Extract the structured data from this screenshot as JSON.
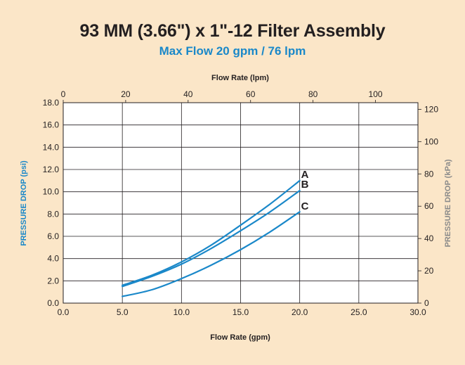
{
  "header": {
    "title": "93 MM (3.66\") x 1\"-12 Filter Assembly",
    "subtitle": "Max Flow 20 gpm / 76 lpm"
  },
  "colors": {
    "background": "#fbe6c8",
    "title": "#231f20",
    "subtitle": "#1a88c9",
    "curve": "#1a88c9",
    "left_axis_label": "#1a88c9",
    "right_axis_label": "#8a8a8a"
  },
  "chart_data": {
    "type": "line",
    "title": "93 MM (3.66\") x 1\"-12 Filter Assembly",
    "subtitle": "Max Flow 20 gpm / 76 lpm",
    "xlabel": "Flow Rate (gpm)",
    "xlim": [
      0,
      30
    ],
    "xticks": [
      "0.0",
      "5.0",
      "10.0",
      "15.0",
      "20.0",
      "25.0",
      "30.0"
    ],
    "x2label": "Flow Rate (lpm)",
    "x2lim": [
      0,
      113.6
    ],
    "x2ticks": [
      "0",
      "20",
      "40",
      "60",
      "80",
      "100"
    ],
    "ylabel": "PRESSURE DROP (psi)",
    "ylim": [
      0,
      18
    ],
    "yticks": [
      "0.0",
      "2.0",
      "4.0",
      "6.0",
      "8.0",
      "10.0",
      "12.0",
      "14.0",
      "16.0",
      "18.0"
    ],
    "y2label": "PRESSURE DROP (kPa)",
    "y2lim": [
      0,
      124.1
    ],
    "y2ticks": [
      "0",
      "20",
      "40",
      "60",
      "80",
      "100",
      "120"
    ],
    "grid": true,
    "series": [
      {
        "name": "A",
        "x": [
          5,
          7.5,
          10,
          12.5,
          15,
          17.5,
          20
        ],
        "y": [
          1.6,
          2.5,
          3.7,
          5.2,
          7.0,
          8.9,
          11.0
        ]
      },
      {
        "name": "B",
        "x": [
          5,
          7.5,
          10,
          12.5,
          15,
          17.5,
          20
        ],
        "y": [
          1.5,
          2.4,
          3.5,
          4.9,
          6.5,
          8.2,
          10.1
        ]
      },
      {
        "name": "C",
        "x": [
          5,
          7.5,
          10,
          12.5,
          15,
          17.5,
          20
        ],
        "y": [
          0.6,
          1.2,
          2.2,
          3.4,
          4.8,
          6.4,
          8.2
        ]
      }
    ]
  }
}
